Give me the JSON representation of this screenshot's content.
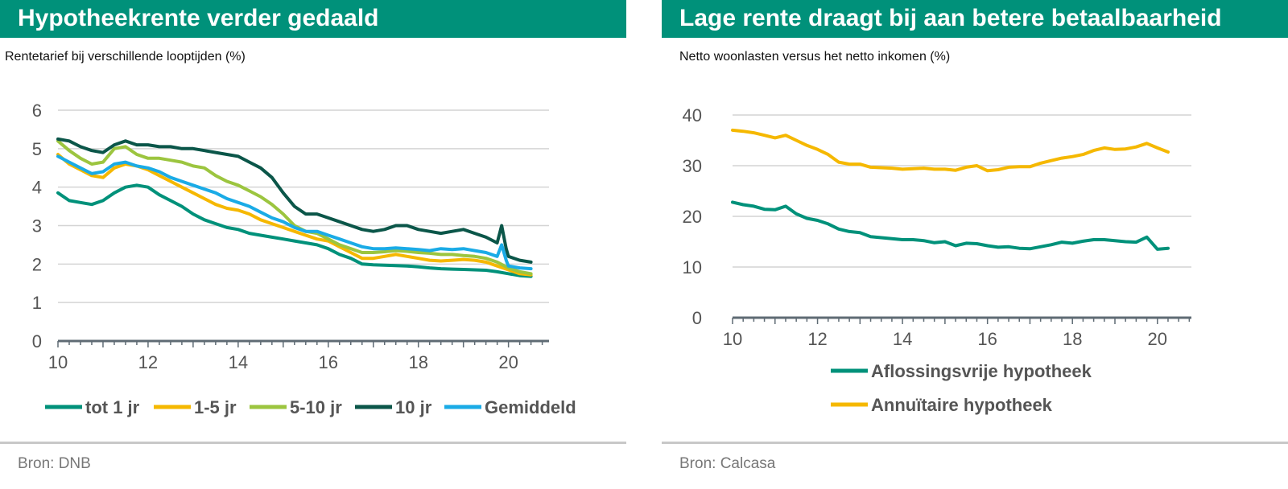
{
  "colors": {
    "header_bg": "#00917a",
    "teal": "#00917a",
    "yellow": "#f5b800",
    "lightgreen": "#9cc53f",
    "darkgreen": "#0b5649",
    "blue": "#1aabe6",
    "axis": "#5f6b74",
    "grid": "#d4d4d4"
  },
  "left": {
    "title": "Hypotheekrente verder gedaald",
    "subtitle": "Rentetarief bij verschillende looptijden (%)",
    "source": "Bron: DNB"
  },
  "right": {
    "title": "Lage rente draagt bij aan betere betaalbaarheid",
    "subtitle": "Netto woonlasten versus het netto inkomen (%)",
    "source": "Bron: Calcasa"
  },
  "chart_data": [
    {
      "type": "line",
      "xlim": [
        10,
        20.9
      ],
      "ylim": [
        0,
        6
      ],
      "xticks": [
        10,
        12,
        14,
        16,
        18,
        20
      ],
      "yticks": [
        0,
        1,
        2,
        3,
        4,
        5,
        6
      ],
      "grid": true,
      "legend": "bottom",
      "series": [
        {
          "name": "tot 1 jr",
          "color": "teal",
          "x": [
            10,
            10.25,
            10.5,
            10.75,
            11,
            11.25,
            11.5,
            11.75,
            12,
            12.25,
            12.5,
            12.75,
            13,
            13.25,
            13.5,
            13.75,
            14,
            14.25,
            14.5,
            14.75,
            15,
            15.25,
            15.5,
            15.75,
            16,
            16.25,
            16.5,
            16.75,
            17,
            17.25,
            17.5,
            17.75,
            18,
            18.25,
            18.5,
            18.75,
            19,
            19.25,
            19.5,
            19.75,
            20,
            20.25,
            20.5
          ],
          "y": [
            3.85,
            3.65,
            3.6,
            3.55,
            3.65,
            3.85,
            4.0,
            4.05,
            4.0,
            3.8,
            3.65,
            3.5,
            3.3,
            3.15,
            3.05,
            2.95,
            2.9,
            2.8,
            2.75,
            2.7,
            2.65,
            2.6,
            2.55,
            2.5,
            2.4,
            2.25,
            2.15,
            2.0,
            1.98,
            1.97,
            1.96,
            1.95,
            1.93,
            1.9,
            1.88,
            1.87,
            1.86,
            1.85,
            1.84,
            1.8,
            1.75,
            1.7,
            1.68
          ]
        },
        {
          "name": "1-5 jr",
          "color": "yellow",
          "x": [
            10,
            10.25,
            10.5,
            10.75,
            11,
            11.25,
            11.5,
            11.75,
            12,
            12.25,
            12.5,
            12.75,
            13,
            13.25,
            13.5,
            13.75,
            14,
            14.25,
            14.5,
            14.75,
            15,
            15.25,
            15.5,
            15.75,
            16,
            16.25,
            16.5,
            16.75,
            17,
            17.25,
            17.5,
            17.75,
            18,
            18.25,
            18.5,
            18.75,
            19,
            19.25,
            19.5,
            19.75,
            20,
            20.25,
            20.5
          ],
          "y": [
            4.85,
            4.6,
            4.45,
            4.3,
            4.25,
            4.5,
            4.6,
            4.55,
            4.45,
            4.3,
            4.15,
            4.0,
            3.85,
            3.7,
            3.55,
            3.45,
            3.4,
            3.3,
            3.15,
            3.05,
            2.95,
            2.85,
            2.75,
            2.65,
            2.6,
            2.45,
            2.3,
            2.15,
            2.15,
            2.2,
            2.25,
            2.2,
            2.15,
            2.1,
            2.08,
            2.1,
            2.12,
            2.1,
            2.05,
            1.95,
            1.85,
            1.75,
            1.72
          ]
        },
        {
          "name": "5-10 jr",
          "color": "lightgreen",
          "x": [
            10,
            10.25,
            10.5,
            10.75,
            11,
            11.25,
            11.5,
            11.75,
            12,
            12.25,
            12.5,
            12.75,
            13,
            13.25,
            13.5,
            13.75,
            14,
            14.25,
            14.5,
            14.75,
            15,
            15.25,
            15.5,
            15.75,
            16,
            16.25,
            16.5,
            16.75,
            17,
            17.25,
            17.5,
            17.75,
            18,
            18.25,
            18.5,
            18.75,
            19,
            19.25,
            19.5,
            19.75,
            20,
            20.25,
            20.5
          ],
          "y": [
            5.2,
            4.95,
            4.75,
            4.6,
            4.65,
            5.0,
            5.05,
            4.85,
            4.75,
            4.75,
            4.7,
            4.65,
            4.55,
            4.5,
            4.3,
            4.15,
            4.05,
            3.9,
            3.75,
            3.55,
            3.3,
            3.0,
            2.85,
            2.8,
            2.65,
            2.5,
            2.4,
            2.3,
            2.3,
            2.32,
            2.35,
            2.33,
            2.3,
            2.28,
            2.25,
            2.25,
            2.22,
            2.2,
            2.15,
            2.05,
            1.9,
            1.8,
            1.75
          ]
        },
        {
          "name": "10 jr",
          "color": "darkgreen",
          "x": [
            10,
            10.25,
            10.5,
            10.75,
            11,
            11.25,
            11.5,
            11.75,
            12,
            12.25,
            12.5,
            12.75,
            13,
            13.25,
            13.5,
            13.75,
            14,
            14.25,
            14.5,
            14.75,
            15,
            15.25,
            15.5,
            15.75,
            16,
            16.25,
            16.5,
            16.75,
            17,
            17.25,
            17.5,
            17.75,
            18,
            18.25,
            18.5,
            18.75,
            19,
            19.25,
            19.5,
            19.75,
            19.85,
            19.95,
            20,
            20.25,
            20.5
          ],
          "y": [
            5.25,
            5.2,
            5.05,
            4.95,
            4.9,
            5.1,
            5.2,
            5.1,
            5.1,
            5.05,
            5.05,
            5.0,
            5.0,
            4.95,
            4.9,
            4.85,
            4.8,
            4.65,
            4.5,
            4.25,
            3.85,
            3.5,
            3.3,
            3.3,
            3.2,
            3.1,
            3.0,
            2.9,
            2.85,
            2.9,
            3.0,
            3.0,
            2.9,
            2.85,
            2.8,
            2.85,
            2.9,
            2.8,
            2.7,
            2.55,
            3.0,
            2.4,
            2.2,
            2.1,
            2.05
          ]
        },
        {
          "name": "Gemiddeld",
          "color": "blue",
          "x": [
            10,
            10.25,
            10.5,
            10.75,
            11,
            11.25,
            11.5,
            11.75,
            12,
            12.25,
            12.5,
            12.75,
            13,
            13.25,
            13.5,
            13.75,
            14,
            14.25,
            14.5,
            14.75,
            15,
            15.25,
            15.5,
            15.75,
            16,
            16.25,
            16.5,
            16.75,
            17,
            17.25,
            17.5,
            17.75,
            18,
            18.25,
            18.5,
            18.75,
            19,
            19.25,
            19.5,
            19.75,
            19.85,
            19.95,
            20,
            20.25,
            20.5
          ],
          "y": [
            4.8,
            4.65,
            4.5,
            4.35,
            4.4,
            4.6,
            4.65,
            4.55,
            4.5,
            4.4,
            4.25,
            4.15,
            4.05,
            3.95,
            3.85,
            3.7,
            3.6,
            3.5,
            3.35,
            3.2,
            3.1,
            2.95,
            2.85,
            2.85,
            2.75,
            2.65,
            2.55,
            2.45,
            2.4,
            2.4,
            2.42,
            2.4,
            2.38,
            2.35,
            2.4,
            2.38,
            2.4,
            2.35,
            2.3,
            2.2,
            2.5,
            2.1,
            1.95,
            1.9,
            1.88
          ]
        }
      ]
    },
    {
      "type": "line",
      "xlim": [
        10,
        20.8
      ],
      "ylim": [
        0,
        40
      ],
      "xticks": [
        10,
        12,
        14,
        16,
        18,
        20
      ],
      "yticks": [
        0,
        10,
        20,
        30,
        40
      ],
      "grid": true,
      "legend": "bottom",
      "series": [
        {
          "name": "Aflossingsvrije hypotheek",
          "color": "teal",
          "x": [
            10,
            10.25,
            10.5,
            10.75,
            11,
            11.25,
            11.5,
            11.75,
            12,
            12.25,
            12.5,
            12.75,
            13,
            13.25,
            13.5,
            13.75,
            14,
            14.25,
            14.5,
            14.75,
            15,
            15.25,
            15.5,
            15.75,
            16,
            16.25,
            16.5,
            16.75,
            17,
            17.25,
            17.5,
            17.75,
            18,
            18.25,
            18.5,
            18.75,
            19,
            19.25,
            19.5,
            19.75,
            20,
            20.25
          ],
          "y": [
            22.8,
            22.3,
            22.0,
            21.4,
            21.3,
            22.0,
            20.5,
            19.6,
            19.2,
            18.5,
            17.5,
            17.0,
            16.8,
            16.0,
            15.8,
            15.6,
            15.4,
            15.4,
            15.2,
            14.8,
            15.0,
            14.2,
            14.7,
            14.6,
            14.2,
            13.9,
            14.0,
            13.7,
            13.6,
            14.0,
            14.4,
            14.9,
            14.7,
            15.1,
            15.4,
            15.4,
            15.2,
            15.0,
            14.9,
            15.9,
            13.5,
            13.7
          ]
        },
        {
          "name": "Annuïtaire hypotheek",
          "color": "yellow",
          "x": [
            10,
            10.25,
            10.5,
            10.75,
            11,
            11.25,
            11.5,
            11.75,
            12,
            12.25,
            12.5,
            12.75,
            13,
            13.25,
            13.5,
            13.75,
            14,
            14.25,
            14.5,
            14.75,
            15,
            15.25,
            15.5,
            15.75,
            16,
            16.25,
            16.5,
            16.75,
            17,
            17.25,
            17.5,
            17.75,
            18,
            18.25,
            18.5,
            18.75,
            19,
            19.25,
            19.5,
            19.75,
            20,
            20.25
          ],
          "y": [
            37.0,
            36.8,
            36.5,
            36.0,
            35.5,
            36.0,
            35.0,
            34.0,
            33.2,
            32.2,
            30.7,
            30.3,
            30.3,
            29.7,
            29.6,
            29.5,
            29.3,
            29.4,
            29.5,
            29.3,
            29.3,
            29.1,
            29.7,
            30.0,
            29.0,
            29.2,
            29.7,
            29.8,
            29.8,
            30.5,
            31.0,
            31.5,
            31.8,
            32.2,
            33.0,
            33.5,
            33.2,
            33.3,
            33.7,
            34.4,
            33.5,
            32.7
          ]
        }
      ]
    }
  ]
}
